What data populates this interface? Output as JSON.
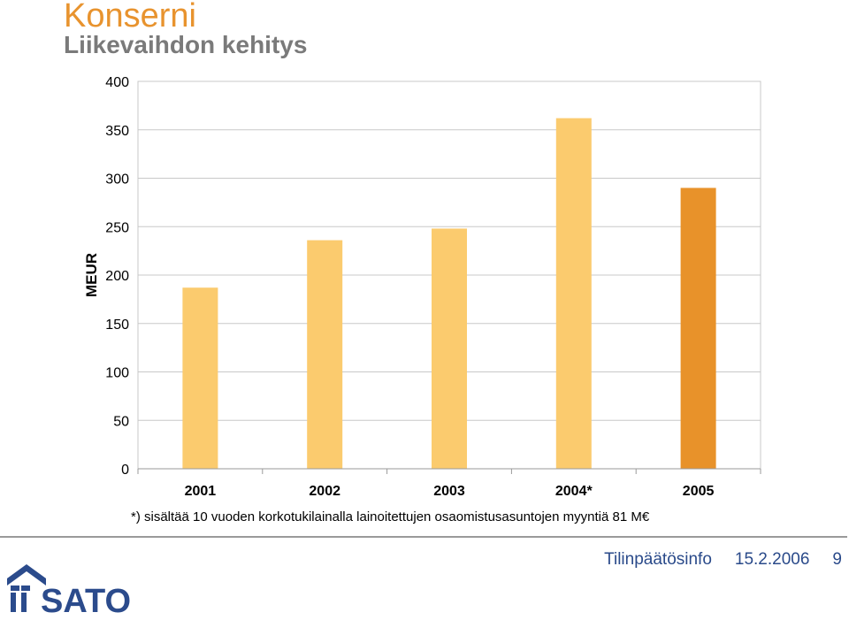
{
  "header": {
    "title": "Konserni",
    "subtitle": "Liikevaihdon kehitys"
  },
  "footnote": "*) sisältää 10 vuoden korkotukilainalla lainoitettujen osaomistusasuntojen myyntiä 81 M€",
  "footer": {
    "label": "Tilinpäätösinfo",
    "date": "15.2.2006",
    "page": "9"
  },
  "logo": {
    "text": "SATO"
  },
  "colors": {
    "accent": "#e8932e",
    "bar": "#fbcb6e",
    "bar_highlight": "#e8922a",
    "footer_text": "#2a4a8a",
    "logo": "#2b4b8c"
  },
  "chart_data": {
    "type": "bar",
    "ylabel": "MEUR",
    "categories": [
      "2001",
      "2002",
      "2003",
      "2004*",
      "2005"
    ],
    "values": [
      187,
      236,
      248,
      362,
      290
    ],
    "highlight": [
      false,
      false,
      false,
      false,
      true
    ],
    "ylim": [
      0,
      400
    ],
    "yticks": [
      0,
      50,
      100,
      150,
      200,
      250,
      300,
      350,
      400
    ],
    "grid": true,
    "legend": "none"
  }
}
